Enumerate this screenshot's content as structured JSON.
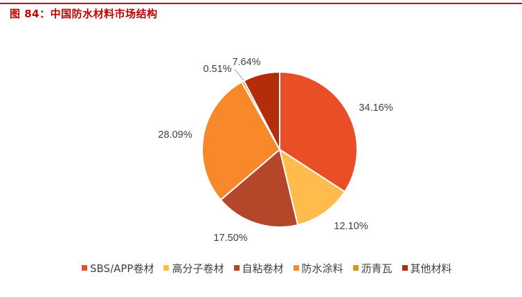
{
  "title": "图 84：中国防水材料市场结构",
  "colors": {
    "title": "#c00000",
    "series": [
      "#e84f26",
      "#ffbb4c",
      "#b4472a",
      "#f8882a",
      "#d89a14",
      "#b42d0a"
    ]
  },
  "chart_data": {
    "type": "pie",
    "categories": [
      "SBS/APP卷材",
      "高分子卷材",
      "自粘卷材",
      "防水涂料",
      "沥青瓦",
      "其他材料"
    ],
    "values": [
      34.16,
      12.1,
      17.5,
      28.09,
      0.51,
      7.64
    ],
    "labels": [
      "34.16%",
      "12.10%",
      "17.50%",
      "28.09%",
      "0.51%",
      "7.64%"
    ],
    "legend_position": "bottom"
  }
}
